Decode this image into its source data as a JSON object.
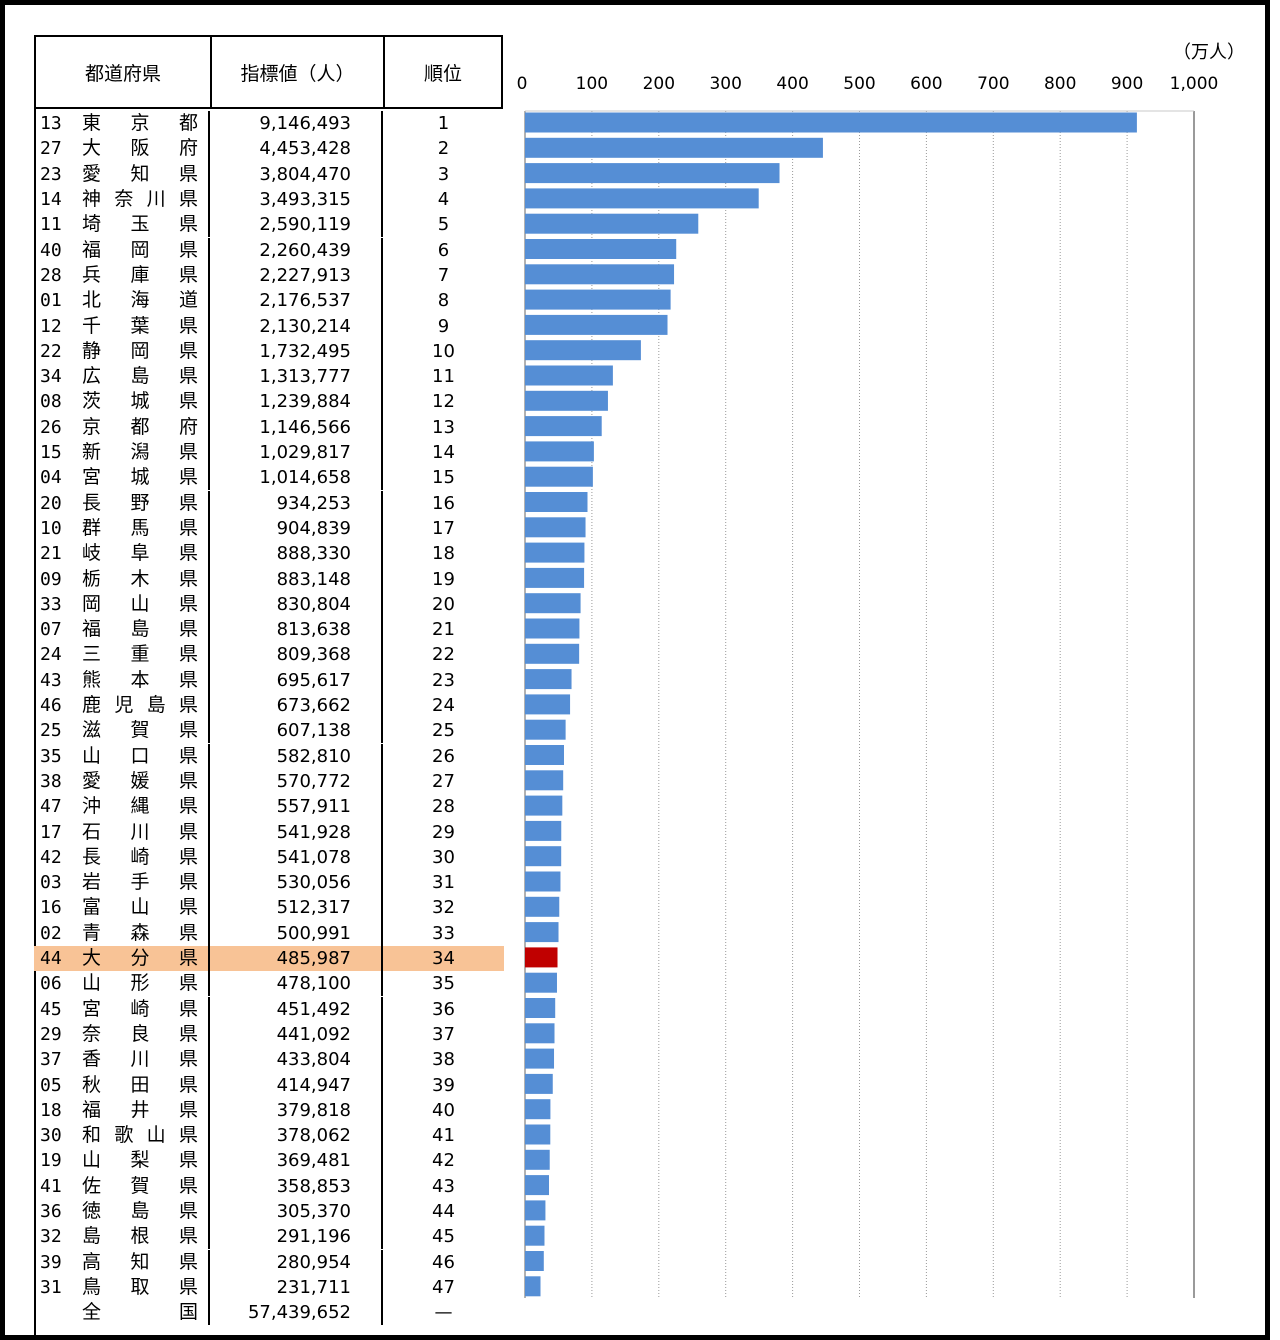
{
  "table": {
    "headers": [
      "都道府県",
      "指標値（人）",
      "順位"
    ],
    "rows": [
      {
        "code": "13",
        "name": "東京都",
        "value": "9,146,493",
        "rank": "1"
      },
      {
        "code": "27",
        "name": "大阪府",
        "value": "4,453,428",
        "rank": "2"
      },
      {
        "code": "23",
        "name": "愛知県",
        "value": "3,804,470",
        "rank": "3"
      },
      {
        "code": "14",
        "name": "神奈川県",
        "value": "3,493,315",
        "rank": "4"
      },
      {
        "code": "11",
        "name": "埼玉県",
        "value": "2,590,119",
        "rank": "5"
      },
      {
        "code": "40",
        "name": "福岡県",
        "value": "2,260,439",
        "rank": "6"
      },
      {
        "code": "28",
        "name": "兵庫県",
        "value": "2,227,913",
        "rank": "7"
      },
      {
        "code": "01",
        "name": "北海道",
        "value": "2,176,537",
        "rank": "8"
      },
      {
        "code": "12",
        "name": "千葉県",
        "value": "2,130,214",
        "rank": "9"
      },
      {
        "code": "22",
        "name": "静岡県",
        "value": "1,732,495",
        "rank": "10"
      },
      {
        "code": "34",
        "name": "広島県",
        "value": "1,313,777",
        "rank": "11"
      },
      {
        "code": "08",
        "name": "茨城県",
        "value": "1,239,884",
        "rank": "12"
      },
      {
        "code": "26",
        "name": "京都府",
        "value": "1,146,566",
        "rank": "13"
      },
      {
        "code": "15",
        "name": "新潟県",
        "value": "1,029,817",
        "rank": "14"
      },
      {
        "code": "04",
        "name": "宮城県",
        "value": "1,014,658",
        "rank": "15"
      },
      {
        "code": "20",
        "name": "長野県",
        "value": "934,253",
        "rank": "16"
      },
      {
        "code": "10",
        "name": "群馬県",
        "value": "904,839",
        "rank": "17"
      },
      {
        "code": "21",
        "name": "岐阜県",
        "value": "888,330",
        "rank": "18"
      },
      {
        "code": "09",
        "name": "栃木県",
        "value": "883,148",
        "rank": "19"
      },
      {
        "code": "33",
        "name": "岡山県",
        "value": "830,804",
        "rank": "20"
      },
      {
        "code": "07",
        "name": "福島県",
        "value": "813,638",
        "rank": "21"
      },
      {
        "code": "24",
        "name": "三重県",
        "value": "809,368",
        "rank": "22"
      },
      {
        "code": "43",
        "name": "熊本県",
        "value": "695,617",
        "rank": "23"
      },
      {
        "code": "46",
        "name": "鹿児島県",
        "value": "673,662",
        "rank": "24"
      },
      {
        "code": "25",
        "name": "滋賀県",
        "value": "607,138",
        "rank": "25"
      },
      {
        "code": "35",
        "name": "山口県",
        "value": "582,810",
        "rank": "26"
      },
      {
        "code": "38",
        "name": "愛媛県",
        "value": "570,772",
        "rank": "27"
      },
      {
        "code": "47",
        "name": "沖縄県",
        "value": "557,911",
        "rank": "28"
      },
      {
        "code": "17",
        "name": "石川県",
        "value": "541,928",
        "rank": "29"
      },
      {
        "code": "42",
        "name": "長崎県",
        "value": "541,078",
        "rank": "30"
      },
      {
        "code": "03",
        "name": "岩手県",
        "value": "530,056",
        "rank": "31"
      },
      {
        "code": "16",
        "name": "富山県",
        "value": "512,317",
        "rank": "32"
      },
      {
        "code": "02",
        "name": "青森県",
        "value": "500,991",
        "rank": "33"
      },
      {
        "code": "44",
        "name": "大分県",
        "value": "485,987",
        "rank": "34",
        "highlight": true
      },
      {
        "code": "06",
        "name": "山形県",
        "value": "478,100",
        "rank": "35"
      },
      {
        "code": "45",
        "name": "宮崎県",
        "value": "451,492",
        "rank": "36"
      },
      {
        "code": "29",
        "name": "奈良県",
        "value": "441,092",
        "rank": "37"
      },
      {
        "code": "37",
        "name": "香川県",
        "value": "433,804",
        "rank": "38"
      },
      {
        "code": "05",
        "name": "秋田県",
        "value": "414,947",
        "rank": "39"
      },
      {
        "code": "18",
        "name": "福井県",
        "value": "379,818",
        "rank": "40"
      },
      {
        "code": "30",
        "name": "和歌山県",
        "value": "378,062",
        "rank": "41"
      },
      {
        "code": "19",
        "name": "山梨県",
        "value": "369,481",
        "rank": "42"
      },
      {
        "code": "41",
        "name": "佐賀県",
        "value": "358,853",
        "rank": "43"
      },
      {
        "code": "36",
        "name": "徳島県",
        "value": "305,370",
        "rank": "44"
      },
      {
        "code": "32",
        "name": "島根県",
        "value": "291,196",
        "rank": "45"
      },
      {
        "code": "39",
        "name": "高知県",
        "value": "280,954",
        "rank": "46"
      },
      {
        "code": "31",
        "name": "鳥取県",
        "value": "231,711",
        "rank": "47"
      },
      {
        "code": "",
        "name": "全国",
        "value": "57,439,652",
        "rank": "—"
      }
    ]
  },
  "colors": {
    "bar": "#558ed5",
    "highlight_bar": "#c00000",
    "highlight_row": "#f8c396",
    "grid": "#9a9a9a"
  },
  "chart_data": {
    "type": "bar",
    "orientation": "horizontal",
    "unit_label": "（万人）",
    "xlim": [
      0,
      1000
    ],
    "ticks": [
      "0",
      "100",
      "200",
      "300",
      "400",
      "500",
      "600",
      "700",
      "800",
      "900",
      "1,000"
    ],
    "tick_values": [
      0,
      100,
      200,
      300,
      400,
      500,
      600,
      700,
      800,
      900,
      1000
    ],
    "categories": [
      "東京都",
      "大阪府",
      "愛知県",
      "神奈川県",
      "埼玉県",
      "福岡県",
      "兵庫県",
      "北海道",
      "千葉県",
      "静岡県",
      "広島県",
      "茨城県",
      "京都府",
      "新潟県",
      "宮城県",
      "長野県",
      "群馬県",
      "岐阜県",
      "栃木県",
      "岡山県",
      "福島県",
      "三重県",
      "熊本県",
      "鹿児島県",
      "滋賀県",
      "山口県",
      "愛媛県",
      "沖縄県",
      "石川県",
      "長崎県",
      "岩手県",
      "富山県",
      "青森県",
      "大分県",
      "山形県",
      "宮崎県",
      "奈良県",
      "香川県",
      "秋田県",
      "福井県",
      "和歌山県",
      "山梨県",
      "佐賀県",
      "徳島県",
      "島根県",
      "高知県",
      "鳥取県"
    ],
    "values": [
      914.6493,
      445.3428,
      380.447,
      349.3315,
      259.0119,
      226.0439,
      222.7913,
      217.6537,
      213.0214,
      173.2495,
      131.3777,
      123.9884,
      114.6566,
      102.9817,
      101.4658,
      93.4253,
      90.4839,
      88.833,
      88.3148,
      83.0804,
      81.3638,
      80.9368,
      69.5617,
      67.3662,
      60.7138,
      58.281,
      57.0772,
      55.7911,
      54.1928,
      54.1078,
      53.0056,
      51.2317,
      50.0991,
      48.5987,
      47.81,
      45.1492,
      44.1092,
      43.3804,
      41.4947,
      37.9818,
      37.8062,
      36.9481,
      35.8853,
      30.537,
      29.1196,
      28.0954,
      23.1711
    ],
    "highlight_index": 33,
    "grid": true
  }
}
